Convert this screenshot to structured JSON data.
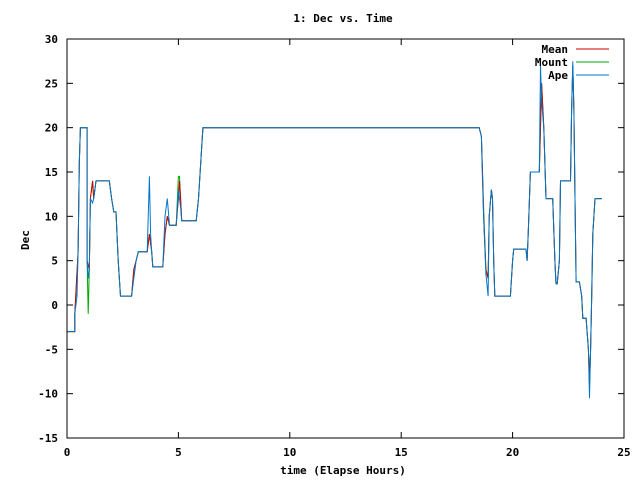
{
  "chart_data": {
    "type": "line",
    "title": "1: Dec vs. Time",
    "xlabel": "time (Elapse Hours)",
    "ylabel": "Dec",
    "xlim": [
      0,
      25
    ],
    "ylim": [
      -15,
      30
    ],
    "xticks": [
      0,
      5,
      10,
      15,
      20,
      25
    ],
    "yticks": [
      -15,
      -10,
      -5,
      0,
      5,
      10,
      15,
      20,
      25,
      30
    ],
    "grid": false,
    "legend_position": "top-right",
    "series": [
      {
        "name": "Mean",
        "color": "#cc0000",
        "points": [
          [
            0,
            -3
          ],
          [
            0.35,
            -3
          ],
          [
            0.35,
            -1
          ],
          [
            0.5,
            6
          ],
          [
            0.55,
            16
          ],
          [
            0.6,
            20
          ],
          [
            0.9,
            20
          ],
          [
            0.9,
            5
          ],
          [
            1.0,
            4
          ],
          [
            1.05,
            12
          ],
          [
            1.15,
            14
          ],
          [
            1.2,
            12
          ],
          [
            1.3,
            14
          ],
          [
            1.9,
            14
          ],
          [
            2.0,
            12
          ],
          [
            2.1,
            10.5
          ],
          [
            2.2,
            10.5
          ],
          [
            2.3,
            5
          ],
          [
            2.4,
            1
          ],
          [
            2.9,
            1
          ],
          [
            3.0,
            4
          ],
          [
            3.1,
            5
          ],
          [
            3.2,
            6
          ],
          [
            3.6,
            6
          ],
          [
            3.7,
            8
          ],
          [
            3.8,
            6
          ],
          [
            3.85,
            4.3
          ],
          [
            4.3,
            4.3
          ],
          [
            4.4,
            8
          ],
          [
            4.5,
            10
          ],
          [
            4.6,
            9
          ],
          [
            4.9,
            9
          ],
          [
            5.0,
            12
          ],
          [
            5.05,
            14
          ],
          [
            5.1,
            12
          ],
          [
            5.15,
            9.5
          ],
          [
            5.8,
            9.5
          ],
          [
            5.9,
            12
          ],
          [
            6.0,
            16
          ],
          [
            6.1,
            20
          ],
          [
            18.5,
            20
          ],
          [
            18.6,
            19
          ],
          [
            18.65,
            15
          ],
          [
            18.7,
            10
          ],
          [
            18.8,
            4
          ],
          [
            18.9,
            3
          ],
          [
            18.95,
            10
          ],
          [
            19.05,
            13
          ],
          [
            19.1,
            12
          ],
          [
            19.15,
            5
          ],
          [
            19.2,
            1
          ],
          [
            19.8,
            1
          ],
          [
            19.9,
            1
          ],
          [
            20.0,
            5
          ],
          [
            20.05,
            6.3
          ],
          [
            20.6,
            6.3
          ],
          [
            20.65,
            5
          ],
          [
            20.7,
            8
          ],
          [
            20.8,
            15
          ],
          [
            21.2,
            15
          ],
          [
            21.25,
            20
          ],
          [
            21.3,
            25
          ],
          [
            21.4,
            20
          ],
          [
            21.5,
            12
          ],
          [
            21.8,
            12
          ],
          [
            21.9,
            5
          ],
          [
            21.95,
            2.4
          ],
          [
            22.0,
            2.4
          ],
          [
            22.1,
            5
          ],
          [
            22.15,
            14
          ],
          [
            22.6,
            14
          ],
          [
            22.65,
            22
          ],
          [
            22.7,
            27
          ],
          [
            22.75,
            22
          ],
          [
            22.8,
            12
          ],
          [
            22.85,
            2.6
          ],
          [
            23.0,
            2.6
          ],
          [
            23.1,
            1
          ],
          [
            23.15,
            -1.5
          ],
          [
            23.3,
            -1.5
          ],
          [
            23.4,
            -5
          ],
          [
            23.45,
            -9
          ],
          [
            23.5,
            -5
          ],
          [
            23.55,
            1
          ],
          [
            23.6,
            8
          ],
          [
            23.7,
            12
          ],
          [
            24.0,
            12
          ]
        ]
      },
      {
        "name": "Mount",
        "color": "#00aa00",
        "points": [
          [
            0,
            -3
          ],
          [
            0.35,
            -3
          ],
          [
            0.35,
            -1
          ],
          [
            0.5,
            6
          ],
          [
            0.55,
            16
          ],
          [
            0.6,
            20
          ],
          [
            0.9,
            20
          ],
          [
            0.9,
            5
          ],
          [
            0.95,
            -1
          ],
          [
            1.0,
            4
          ],
          [
            1.05,
            12
          ],
          [
            1.15,
            14
          ],
          [
            1.2,
            12
          ],
          [
            1.3,
            14
          ],
          [
            1.9,
            14
          ],
          [
            2.0,
            12
          ],
          [
            2.1,
            10.5
          ],
          [
            2.2,
            10.5
          ],
          [
            2.3,
            5
          ],
          [
            2.4,
            1
          ],
          [
            2.9,
            1
          ],
          [
            3.0,
            4
          ],
          [
            3.1,
            5
          ],
          [
            3.2,
            6
          ],
          [
            3.6,
            6
          ],
          [
            3.7,
            8
          ],
          [
            3.8,
            6
          ],
          [
            3.85,
            4.3
          ],
          [
            4.3,
            4.3
          ],
          [
            4.4,
            8
          ],
          [
            4.5,
            10
          ],
          [
            4.6,
            9
          ],
          [
            4.9,
            9
          ],
          [
            5.0,
            14.5
          ],
          [
            5.05,
            14.5
          ],
          [
            5.1,
            12
          ],
          [
            5.15,
            9.5
          ],
          [
            5.8,
            9.5
          ],
          [
            5.9,
            12
          ],
          [
            6.0,
            16
          ],
          [
            6.1,
            20
          ],
          [
            18.5,
            20
          ],
          [
            18.6,
            19
          ],
          [
            18.65,
            15
          ],
          [
            18.7,
            11
          ],
          [
            18.8,
            4
          ],
          [
            18.9,
            3
          ],
          [
            18.95,
            10
          ],
          [
            19.05,
            13
          ],
          [
            19.1,
            12
          ],
          [
            19.15,
            5
          ],
          [
            19.2,
            1
          ],
          [
            19.8,
            1
          ],
          [
            19.9,
            1
          ],
          [
            20.0,
            5
          ],
          [
            20.05,
            6.3
          ],
          [
            20.6,
            6.3
          ],
          [
            20.65,
            5
          ],
          [
            20.7,
            8
          ],
          [
            20.8,
            15
          ],
          [
            21.2,
            15
          ],
          [
            21.25,
            20
          ],
          [
            21.3,
            25
          ],
          [
            21.4,
            20
          ],
          [
            21.5,
            12
          ],
          [
            21.8,
            12
          ],
          [
            21.9,
            5
          ],
          [
            21.95,
            2.4
          ],
          [
            22.0,
            2.4
          ],
          [
            22.1,
            5
          ],
          [
            22.15,
            14
          ],
          [
            22.6,
            14
          ],
          [
            22.65,
            22
          ],
          [
            22.7,
            27
          ],
          [
            22.75,
            22
          ],
          [
            22.8,
            12
          ],
          [
            22.85,
            2.6
          ],
          [
            23.0,
            2.6
          ],
          [
            23.1,
            1
          ],
          [
            23.15,
            -1.5
          ],
          [
            23.3,
            -1.5
          ],
          [
            23.4,
            -5
          ],
          [
            23.45,
            -9
          ],
          [
            23.5,
            -5
          ],
          [
            23.55,
            1
          ],
          [
            23.6,
            8
          ],
          [
            23.7,
            12
          ],
          [
            24.0,
            12
          ]
        ]
      },
      {
        "name": "Ape",
        "color": "#0077cc",
        "points": [
          [
            0,
            -3
          ],
          [
            0.35,
            -3
          ],
          [
            0.35,
            -1
          ],
          [
            0.45,
            1
          ],
          [
            0.5,
            6
          ],
          [
            0.55,
            16
          ],
          [
            0.6,
            20
          ],
          [
            0.9,
            20
          ],
          [
            0.9,
            5
          ],
          [
            0.95,
            3
          ],
          [
            1.0,
            4
          ],
          [
            1.05,
            12
          ],
          [
            1.15,
            11.5
          ],
          [
            1.2,
            12
          ],
          [
            1.3,
            14
          ],
          [
            1.9,
            14
          ],
          [
            2.0,
            12
          ],
          [
            2.1,
            10.5
          ],
          [
            2.2,
            10.5
          ],
          [
            2.3,
            5
          ],
          [
            2.4,
            1
          ],
          [
            2.9,
            1
          ],
          [
            3.0,
            3
          ],
          [
            3.05,
            4
          ],
          [
            3.1,
            5
          ],
          [
            3.2,
            6
          ],
          [
            3.6,
            6
          ],
          [
            3.7,
            14.5
          ],
          [
            3.75,
            8
          ],
          [
            3.8,
            6
          ],
          [
            3.85,
            4.3
          ],
          [
            4.3,
            4.3
          ],
          [
            4.4,
            10
          ],
          [
            4.5,
            12
          ],
          [
            4.6,
            9
          ],
          [
            4.9,
            9
          ],
          [
            5.0,
            13
          ],
          [
            5.05,
            12
          ],
          [
            5.1,
            11
          ],
          [
            5.15,
            9.5
          ],
          [
            5.8,
            9.5
          ],
          [
            5.9,
            12
          ],
          [
            6.0,
            16
          ],
          [
            6.1,
            20
          ],
          [
            18.5,
            20
          ],
          [
            18.6,
            19
          ],
          [
            18.65,
            14
          ],
          [
            18.7,
            10
          ],
          [
            18.8,
            3.5
          ],
          [
            18.9,
            1
          ],
          [
            18.95,
            10
          ],
          [
            19.05,
            13
          ],
          [
            19.1,
            12
          ],
          [
            19.15,
            5
          ],
          [
            19.2,
            1
          ],
          [
            19.8,
            1
          ],
          [
            19.9,
            1
          ],
          [
            20.0,
            5
          ],
          [
            20.05,
            6.3
          ],
          [
            20.6,
            6.3
          ],
          [
            20.65,
            5
          ],
          [
            20.7,
            8
          ],
          [
            20.8,
            15
          ],
          [
            21.2,
            15
          ],
          [
            21.25,
            27
          ],
          [
            21.3,
            23
          ],
          [
            21.4,
            20
          ],
          [
            21.5,
            12
          ],
          [
            21.8,
            12
          ],
          [
            21.9,
            5
          ],
          [
            21.95,
            2.4
          ],
          [
            22.0,
            2.4
          ],
          [
            22.1,
            5
          ],
          [
            22.15,
            14
          ],
          [
            22.6,
            14
          ],
          [
            22.65,
            22
          ],
          [
            22.7,
            27.5
          ],
          [
            22.75,
            22
          ],
          [
            22.8,
            12
          ],
          [
            22.85,
            2.6
          ],
          [
            23.0,
            2.6
          ],
          [
            23.1,
            1
          ],
          [
            23.15,
            -1.5
          ],
          [
            23.3,
            -1.5
          ],
          [
            23.4,
            -5
          ],
          [
            23.45,
            -10.5
          ],
          [
            23.5,
            -5
          ],
          [
            23.55,
            1
          ],
          [
            23.6,
            8
          ],
          [
            23.7,
            12
          ],
          [
            24.0,
            12
          ]
        ]
      }
    ]
  }
}
